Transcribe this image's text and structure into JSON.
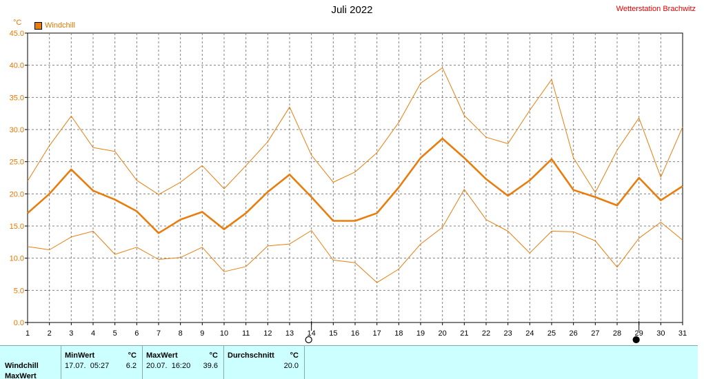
{
  "header": {
    "title": "Juli 2022",
    "station": "Wetterstation Brachwitz",
    "unit": "°C"
  },
  "legend": {
    "label": "Windchill",
    "color": "#e87d0d"
  },
  "chart_data": {
    "type": "line",
    "title": "Juli 2022",
    "ylabel": "°C",
    "ylim": [
      0,
      45
    ],
    "ytick_step": 5,
    "x": [
      1,
      2,
      3,
      4,
      5,
      6,
      7,
      8,
      9,
      10,
      11,
      12,
      13,
      14,
      15,
      16,
      17,
      18,
      19,
      20,
      21,
      22,
      23,
      24,
      25,
      26,
      27,
      28,
      29,
      30,
      31
    ],
    "grid": true,
    "moon_phases": [
      {
        "day": 14,
        "phase": "full"
      },
      {
        "day": 29,
        "phase": "new"
      }
    ],
    "series": [
      {
        "name": "Windchill",
        "role": "max",
        "color": "#e87d0d",
        "values": [
          22.0,
          27.5,
          32.1,
          27.2,
          26.6,
          22.1,
          19.9,
          21.8,
          24.4,
          20.8,
          24.4,
          28.1,
          33.5,
          26.0,
          21.8,
          23.4,
          26.4,
          31.1,
          37.2,
          39.6,
          32.2,
          28.8,
          27.8,
          33.0,
          37.8,
          25.6,
          20.2,
          26.8,
          31.8,
          22.6,
          30.4
        ]
      },
      {
        "name": "Windchill",
        "role": "avg",
        "color": "#e87d0d",
        "values": [
          17.0,
          20.0,
          23.8,
          20.5,
          19.1,
          17.3,
          13.9,
          16.0,
          17.2,
          14.5,
          17.0,
          20.3,
          23.0,
          19.5,
          15.8,
          15.8,
          17.0,
          21.0,
          25.6,
          28.6,
          25.6,
          22.3,
          19.7,
          22.1,
          25.4,
          20.6,
          19.5,
          18.2,
          22.5,
          19.0,
          21.2
        ]
      },
      {
        "name": "Windchill",
        "role": "min",
        "color": "#e87d0d",
        "values": [
          11.8,
          11.3,
          13.3,
          14.2,
          10.6,
          11.7,
          9.8,
          10.1,
          11.7,
          7.9,
          8.7,
          11.9,
          12.2,
          14.3,
          9.7,
          9.3,
          6.2,
          8.3,
          12.2,
          14.8,
          20.7,
          16.0,
          14.2,
          10.8,
          14.2,
          14.1,
          12.7,
          8.6,
          13.1,
          15.6,
          12.8
        ]
      }
    ]
  },
  "stats": {
    "min_header": "MinWert",
    "max_header": "MaxWert",
    "avg_header": "Durchschnitt",
    "unit": "°C",
    "rows": [
      {
        "label": "Windchill",
        "min_time": "17.07.  05:27",
        "min_value": "6.2",
        "max_time": "20.07.  16:20",
        "max_value": "39.6",
        "avg_value": "20.0"
      }
    ],
    "next_row_label": "MaxWert"
  }
}
